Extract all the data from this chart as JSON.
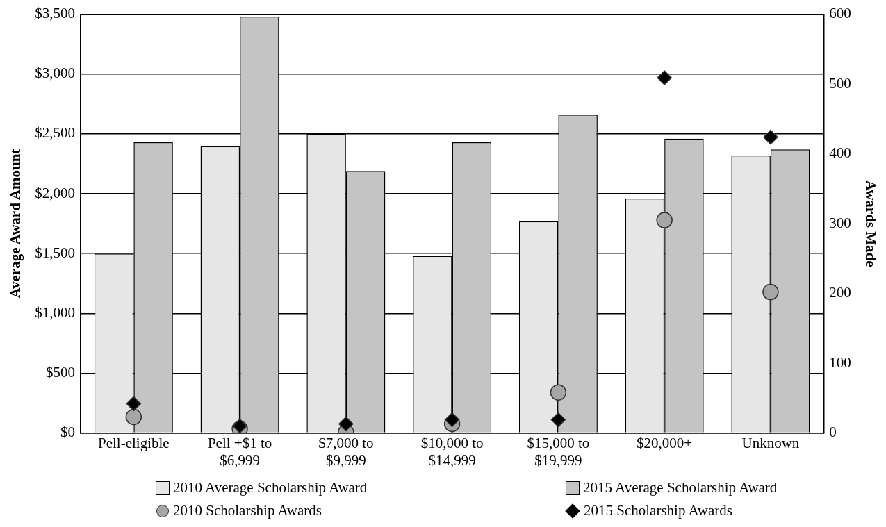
{
  "chart_data": {
    "type": "bar",
    "ylabel": "Average Award Amount",
    "y2label": "Awards Made",
    "categories": [
      "Pell-eligible",
      "Pell +$1 to $6,999",
      "$7,000 to $9,999",
      "$10,000 to $14,999",
      "$15,000 to $19,999",
      "$20,000+",
      "Unknown"
    ],
    "series": [
      {
        "name": "2010 Average Scholarship Award",
        "color": "#e6e6e6",
        "values": [
          1500,
          2400,
          2500,
          1480,
          1770,
          1960,
          2320
        ]
      },
      {
        "name": "2015 Average Scholarship Award",
        "color": "#c4c4c4",
        "values": [
          2430,
          3480,
          2190,
          2430,
          2660,
          2460,
          2370
        ]
      },
      {
        "name": "2010 Scholarship Awards",
        "type": "scatter",
        "axis": "y2",
        "marker": "circle",
        "color": "#a6a6a6",
        "values": [
          23,
          6,
          1,
          13,
          58,
          305,
          202
        ]
      },
      {
        "name": "2015 Scholarship Awards",
        "type": "scatter",
        "axis": "y2",
        "marker": "diamond",
        "color": "#000000",
        "values": [
          42,
          10,
          13,
          19,
          19,
          509,
          424
        ]
      }
    ],
    "ylim": [
      0,
      3500
    ],
    "yticks": [
      {
        "value": 0,
        "label": "$0"
      },
      {
        "value": 500,
        "label": "$500"
      },
      {
        "value": 1000,
        "label": "$1,000"
      },
      {
        "value": 1500,
        "label": "$1,500"
      },
      {
        "value": 2000,
        "label": "$2,000"
      },
      {
        "value": 2500,
        "label": "$2,500"
      },
      {
        "value": 3000,
        "label": "$3,000"
      },
      {
        "value": 3500,
        "label": "$3,500"
      }
    ],
    "y2lim": [
      0,
      600
    ],
    "y2ticks": [
      0,
      100,
      200,
      300,
      400,
      500,
      600
    ],
    "grid": "y",
    "legend": "bottom"
  }
}
